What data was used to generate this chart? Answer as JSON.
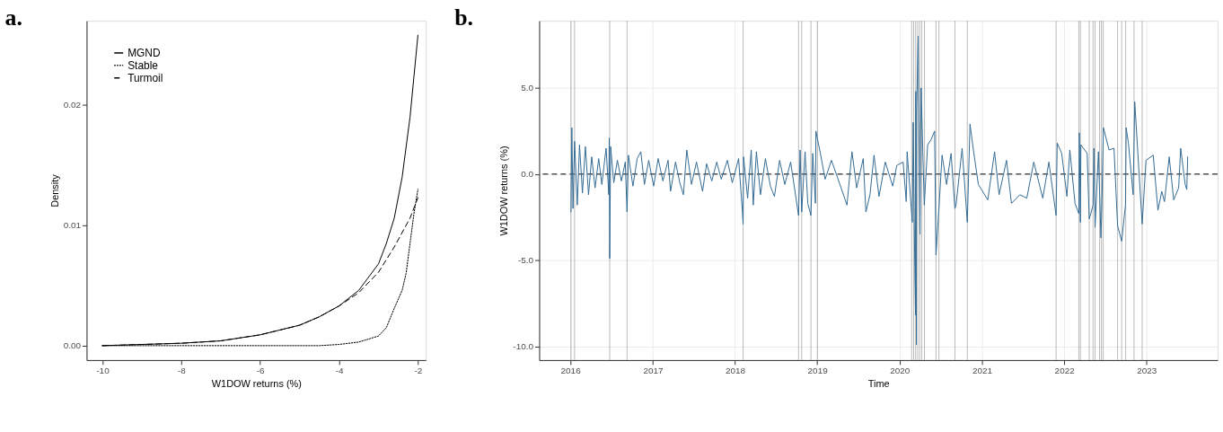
{
  "chart_data": [
    {
      "type": "line",
      "title": "a.",
      "xlabel": "W1DOW returns (%)",
      "ylabel": "Density",
      "xlim": [
        -10.4,
        -1.8
      ],
      "ylim": [
        -0.0012,
        0.027
      ],
      "xticks": [
        -10,
        -8,
        -6,
        -4,
        -2
      ],
      "yticks": [
        {
          "value": 0,
          "label": "0.00"
        },
        {
          "value": 0.01,
          "label": "0.01"
        },
        {
          "value": 0.02,
          "label": "0.02"
        }
      ],
      "grid": false,
      "legend": "top left",
      "series": [
        {
          "name": "MGND",
          "color": "#000000",
          "line_style": "solid",
          "x": [
            -10,
            -9,
            -8,
            -7,
            -6,
            -5,
            -4.5,
            -4,
            -3.5,
            -3,
            -2.8,
            -2.6,
            -2.4,
            -2.2,
            -2
          ],
          "values": [
            0.0,
            0.0001,
            0.0002,
            0.0004,
            0.0009,
            0.0017,
            0.0024,
            0.0033,
            0.0046,
            0.0068,
            0.0085,
            0.0106,
            0.014,
            0.019,
            0.0258
          ]
        },
        {
          "name": "Stable",
          "color": "#000000",
          "line_style": "dotted",
          "x": [
            -10,
            -8,
            -6,
            -4.5,
            -4,
            -3.5,
            -3,
            -2.8,
            -2.6,
            -2.4,
            -2.3,
            -2.2,
            -2.1,
            -2
          ],
          "values": [
            0.0,
            0.0,
            0.0,
            0.0,
            0.0001,
            0.0003,
            0.0008,
            0.0015,
            0.0031,
            0.0046,
            0.006,
            0.0085,
            0.011,
            0.013
          ]
        },
        {
          "name": "Turmoil",
          "color": "#000000",
          "line_style": "dashed",
          "x": [
            -10,
            -9,
            -8,
            -7,
            -6,
            -5,
            -4.5,
            -4,
            -3.5,
            -3,
            -2.6,
            -2.2,
            -2
          ],
          "values": [
            0.0,
            0.0001,
            0.0002,
            0.0004,
            0.0009,
            0.0017,
            0.0024,
            0.0033,
            0.0044,
            0.0061,
            0.0082,
            0.0106,
            0.0123
          ]
        }
      ]
    },
    {
      "type": "line",
      "title": "b.",
      "xlabel": "Time",
      "ylabel": "W1DOW returns (%)",
      "xlim": [
        "2015-08-16",
        "2023-11-13"
      ],
      "ylim": [
        -10.8,
        8.9
      ],
      "xticks": [
        "2016",
        "2017",
        "2018",
        "2019",
        "2020",
        "2021",
        "2022",
        "2023"
      ],
      "yticks": [
        {
          "value": -10,
          "label": "-10.0"
        },
        {
          "value": -5,
          "label": "-5.0"
        },
        {
          "value": 0,
          "label": "0.0"
        },
        {
          "value": 5,
          "label": "5.0"
        }
      ],
      "grid": true,
      "ref_lines": [
        {
          "axis": "y",
          "value": 0,
          "color": "#000000",
          "line_style": "dashed"
        },
        {
          "axis": "x",
          "value": "2016-01-04",
          "color": "#808080"
        },
        {
          "axis": "x",
          "value": "2016-01-20",
          "color": "#808080"
        },
        {
          "axis": "x",
          "value": "2016-06-24",
          "color": "#808080"
        },
        {
          "axis": "x",
          "value": "2016-09-09",
          "color": "#808080"
        },
        {
          "axis": "x",
          "value": "2018-02-06",
          "color": "#808080"
        },
        {
          "axis": "x",
          "value": "2018-10-10",
          "color": "#808080"
        },
        {
          "axis": "x",
          "value": "2018-10-24",
          "color": "#808080"
        },
        {
          "axis": "x",
          "value": "2018-12-04",
          "color": "#808080"
        },
        {
          "axis": "x",
          "value": "2019-01-02",
          "color": "#808080"
        },
        {
          "axis": "x",
          "value": "2020-02-24",
          "color": "#808080"
        },
        {
          "axis": "x",
          "value": "2020-03-04",
          "color": "#808080"
        },
        {
          "axis": "x",
          "value": "2020-03-13",
          "color": "#808080"
        },
        {
          "axis": "x",
          "value": "2020-03-22",
          "color": "#808080"
        },
        {
          "axis": "x",
          "value": "2020-03-31",
          "color": "#808080"
        },
        {
          "axis": "x",
          "value": "2020-04-09",
          "color": "#808080"
        },
        {
          "axis": "x",
          "value": "2020-04-21",
          "color": "#808080"
        },
        {
          "axis": "x",
          "value": "2020-06-11",
          "color": "#808080"
        },
        {
          "axis": "x",
          "value": "2020-06-24",
          "color": "#808080"
        },
        {
          "axis": "x",
          "value": "2020-09-03",
          "color": "#808080"
        },
        {
          "axis": "x",
          "value": "2020-10-28",
          "color": "#808080"
        },
        {
          "axis": "x",
          "value": "2021-11-26",
          "color": "#808080"
        },
        {
          "axis": "x",
          "value": "2022-03-07",
          "color": "#808080"
        },
        {
          "axis": "x",
          "value": "2022-03-14",
          "color": "#808080"
        },
        {
          "axis": "x",
          "value": "2022-04-22",
          "color": "#808080"
        },
        {
          "axis": "x",
          "value": "2022-05-09",
          "color": "#808080"
        },
        {
          "axis": "x",
          "value": "2022-05-18",
          "color": "#808080"
        },
        {
          "axis": "x",
          "value": "2022-06-07",
          "color": "#808080"
        },
        {
          "axis": "x",
          "value": "2022-06-15",
          "color": "#808080"
        },
        {
          "axis": "x",
          "value": "2022-06-23",
          "color": "#808080"
        },
        {
          "axis": "x",
          "value": "2022-08-26",
          "color": "#808080"
        },
        {
          "axis": "x",
          "value": "2022-09-13",
          "color": "#808080"
        },
        {
          "axis": "x",
          "value": "2022-10-01",
          "color": "#808080"
        },
        {
          "axis": "x",
          "value": "2022-11-07",
          "color": "#808080"
        },
        {
          "axis": "x",
          "value": "2022-12-13",
          "color": "#808080"
        }
      ],
      "series": [
        {
          "color": "#336b94",
          "line_style": "solid",
          "x": [
            "2016-01-04",
            "2016-01-08",
            "2016-01-13",
            "2016-01-20",
            "2016-02-01",
            "2016-02-11",
            "2016-02-24",
            "2016-03-08",
            "2016-03-22",
            "2016-04-05",
            "2016-04-20",
            "2016-05-06",
            "2016-05-20",
            "2016-06-08",
            "2016-06-20",
            "2016-06-22",
            "2016-06-24",
            "2016-06-28",
            "2016-07-12",
            "2016-07-28",
            "2016-08-15",
            "2016-09-01",
            "2016-09-09",
            "2016-09-15",
            "2016-10-05",
            "2016-10-24",
            "2016-11-09",
            "2016-11-25",
            "2016-12-14",
            "2017-01-05",
            "2017-01-25",
            "2017-02-15",
            "2017-03-10",
            "2017-03-21",
            "2017-04-12",
            "2017-05-01",
            "2017-05-17",
            "2017-06-01",
            "2017-06-22",
            "2017-07-14",
            "2017-08-10",
            "2017-08-28",
            "2017-09-20",
            "2017-10-12",
            "2017-11-01",
            "2017-11-28",
            "2017-12-20",
            "2018-01-17",
            "2018-02-02",
            "2018-02-06",
            "2018-02-08",
            "2018-02-26",
            "2018-03-14",
            "2018-03-23",
            "2018-04-06",
            "2018-04-24",
            "2018-05-16",
            "2018-06-07",
            "2018-06-25",
            "2018-07-18",
            "2018-08-10",
            "2018-09-05",
            "2018-10-10",
            "2018-10-17",
            "2018-10-24",
            "2018-11-08",
            "2018-11-20",
            "2018-12-04",
            "2018-12-12",
            "2018-12-24",
            "2018-12-26",
            "2019-01-15",
            "2019-02-05",
            "2019-03-05",
            "2019-04-01",
            "2019-05-13",
            "2019-06-04",
            "2019-06-25",
            "2019-07-24",
            "2019-08-05",
            "2019-08-23",
            "2019-09-10",
            "2019-10-02",
            "2019-10-30",
            "2019-12-02",
            "2019-12-20",
            "2020-01-17",
            "2020-01-31",
            "2020-02-04",
            "2020-02-24",
            "2020-02-27",
            "2020-03-02",
            "2020-03-09",
            "2020-03-12",
            "2020-03-13",
            "2020-03-16",
            "2020-03-17",
            "2020-03-24",
            "2020-03-26",
            "2020-04-01",
            "2020-04-06",
            "2020-04-20",
            "2020-05-05",
            "2020-05-20",
            "2020-06-05",
            "2020-06-11",
            "2020-06-24",
            "2020-07-08",
            "2020-07-28",
            "2020-08-17",
            "2020-09-03",
            "2020-09-08",
            "2020-10-05",
            "2020-10-28",
            "2020-11-09",
            "2020-11-24",
            "2020-12-16",
            "2021-01-27",
            "2021-02-26",
            "2021-03-18",
            "2021-04-20",
            "2021-05-12",
            "2021-06-18",
            "2021-07-19",
            "2021-08-19",
            "2021-09-28",
            "2021-10-25",
            "2021-11-26",
            "2021-12-01",
            "2021-12-21",
            "2022-01-13",
            "2022-01-26",
            "2022-02-18",
            "2022-03-07",
            "2022-03-09",
            "2022-03-14",
            "2022-03-16",
            "2022-04-13",
            "2022-04-22",
            "2022-04-29",
            "2022-05-09",
            "2022-05-13",
            "2022-05-18",
            "2022-06-02",
            "2022-06-13",
            "2022-06-16",
            "2022-06-24",
            "2022-07-19",
            "2022-08-10",
            "2022-08-26",
            "2022-09-13",
            "2022-09-30",
            "2022-10-03",
            "2022-10-13",
            "2022-11-03",
            "2022-11-10",
            "2022-12-13",
            "2022-12-30",
            "2023-01-31",
            "2023-02-21",
            "2023-03-10",
            "2023-03-22",
            "2023-04-12",
            "2023-05-02",
            "2023-05-24",
            "2023-06-02",
            "2023-06-22",
            "2023-06-29",
            "2023-07-03"
          ],
          "values": [
            -2.2,
            2.7,
            -2.0,
            1.9,
            -1.8,
            1.7,
            -1.1,
            1.6,
            -1.2,
            1.0,
            -0.8,
            0.9,
            -0.6,
            1.5,
            -1.2,
            2.1,
            -4.9,
            1.6,
            -0.5,
            0.8,
            -0.4,
            0.7,
            -2.2,
            1.1,
            -0.7,
            0.9,
            1.3,
            -0.6,
            0.8,
            -0.7,
            0.9,
            -0.4,
            0.8,
            -1.0,
            0.7,
            -0.5,
            -1.2,
            1.4,
            -0.6,
            0.7,
            -1.0,
            0.6,
            -0.4,
            0.7,
            -0.3,
            0.8,
            -0.5,
            0.9,
            -2.0,
            -2.9,
            1.0,
            -1.4,
            1.4,
            -1.8,
            1.3,
            -1.2,
            0.9,
            -0.7,
            -1.3,
            0.8,
            -0.6,
            0.7,
            -2.4,
            1.4,
            -2.2,
            1.3,
            -1.7,
            -2.4,
            1.2,
            -1.7,
            2.5,
            1.2,
            -0.3,
            0.8,
            -0.2,
            -1.8,
            1.3,
            -0.8,
            0.9,
            -2.2,
            -1.2,
            1.1,
            -1.3,
            0.7,
            -0.7,
            0.5,
            0.7,
            -1.6,
            1.3,
            -2.3,
            -2.8,
            3.0,
            -5.5,
            -8.2,
            4.8,
            -9.9,
            3.7,
            8.0,
            4.6,
            -3.5,
            5.0,
            -1.8,
            1.7,
            2.0,
            2.5,
            -4.7,
            -2.0,
            1.1,
            -0.6,
            1.2,
            -2.0,
            -1.8,
            1.5,
            -2.8,
            2.9,
            1.4,
            -0.6,
            -1.5,
            1.3,
            -1.2,
            0.8,
            -1.7,
            -1.2,
            -1.4,
            0.7,
            -1.4,
            0.7,
            -2.4,
            1.8,
            1.2,
            -1.3,
            1.4,
            -1.7,
            -2.3,
            2.4,
            -2.8,
            1.7,
            1.2,
            -2.6,
            -2.3,
            -1.8,
            1.5,
            -3.1,
            1.3,
            -3.7,
            -2.5,
            2.7,
            1.4,
            1.5,
            -3.0,
            -3.9,
            -1.8,
            2.7,
            1.8,
            -1.2,
            4.2,
            -2.9,
            0.8,
            1.1,
            -2.1,
            -1.0,
            -1.6,
            1.0,
            -1.5,
            -0.8,
            1.5,
            -0.6,
            -0.9,
            1.0
          ]
        }
      ]
    }
  ]
}
